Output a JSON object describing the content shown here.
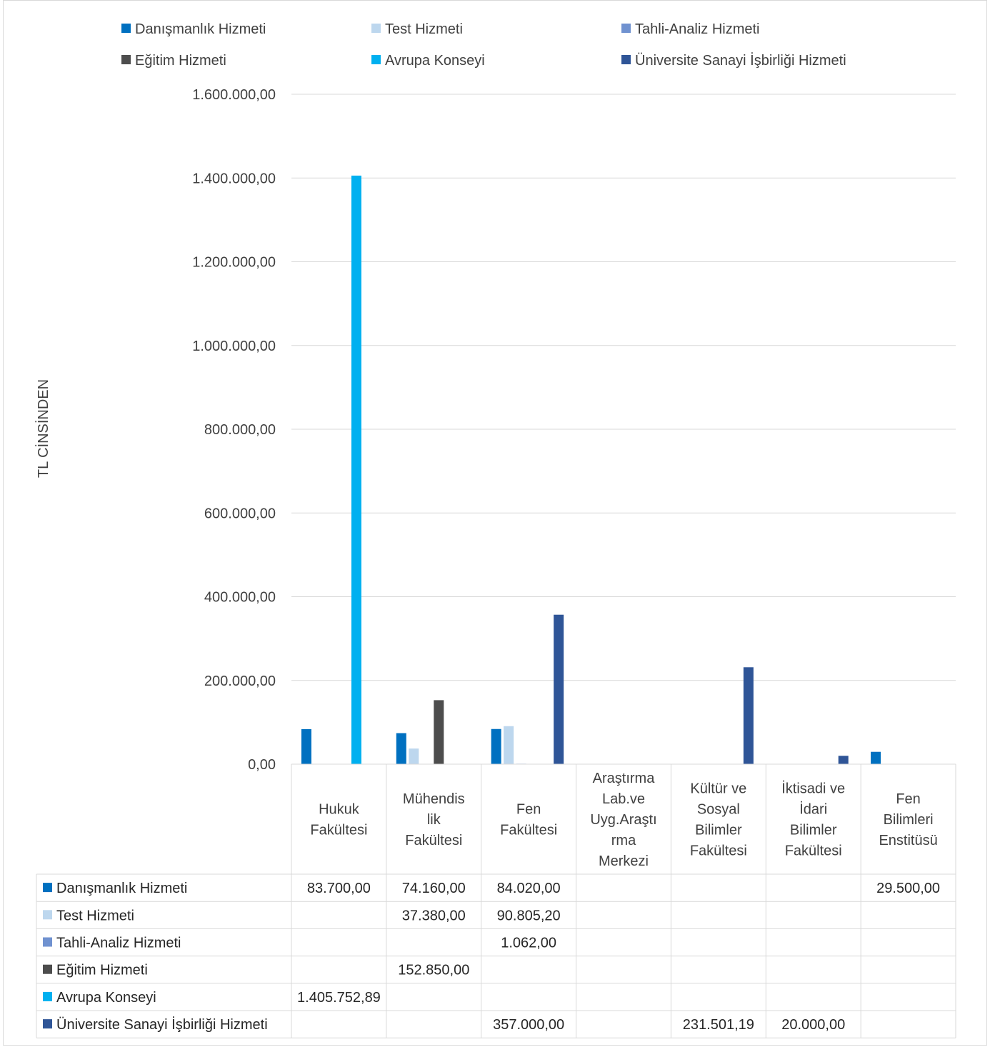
{
  "chart_data": {
    "type": "bar",
    "ylabel": "TL CİNSİNDEN",
    "ylim": [
      0,
      1600000
    ],
    "yticks": [
      {
        "value": 0,
        "label": "0,00"
      },
      {
        "value": 200000,
        "label": "200.000,00"
      },
      {
        "value": 400000,
        "label": "400.000,00"
      },
      {
        "value": 600000,
        "label": "600.000,00"
      },
      {
        "value": 800000,
        "label": "800.000,00"
      },
      {
        "value": 1000000,
        "label": "1.000.000,00"
      },
      {
        "value": 1200000,
        "label": "1.200.000,00"
      },
      {
        "value": 1400000,
        "label": "1.400.000,00"
      },
      {
        "value": 1600000,
        "label": "1.600.000,00"
      }
    ],
    "grid": true,
    "legend": "top",
    "categories": [
      [
        "Hukuk",
        "Fakültesi"
      ],
      [
        "Mühendis",
        "lik",
        "Fakültesi"
      ],
      [
        "Fen",
        "Fakültesi"
      ],
      [
        "Araştırma",
        "Lab.ve",
        "Uyg.Araştı",
        "rma",
        "Merkezi"
      ],
      [
        "Kültür ve",
        "Sosyal",
        "Bilimler",
        "Fakültesi"
      ],
      [
        "İktisadi ve",
        "İdari",
        "Bilimler",
        "Fakültesi"
      ],
      [
        "Fen",
        "Bilimleri",
        "Enstitüsü"
      ]
    ],
    "series": [
      {
        "name": "Danışmanlık Hizmeti",
        "color": "#0070C0",
        "values": [
          83700,
          74160,
          84020,
          null,
          null,
          null,
          29500
        ],
        "labels": [
          "83.700,00",
          "74.160,00",
          "84.020,00",
          "",
          "",
          "",
          "29.500,00"
        ]
      },
      {
        "name": "Test Hizmeti",
        "color": "#BDD7EE",
        "values": [
          null,
          37380,
          90805.2,
          null,
          null,
          null,
          null
        ],
        "labels": [
          "",
          "37.380,00",
          "90.805,20",
          "",
          "",
          "",
          ""
        ]
      },
      {
        "name": "Tahli-Analiz Hizmeti",
        "color": "#7092D0",
        "values": [
          null,
          null,
          1062,
          null,
          null,
          null,
          null
        ],
        "labels": [
          "",
          "",
          "1.062,00",
          "",
          "",
          "",
          ""
        ]
      },
      {
        "name": "Eğitim Hizmeti",
        "color": "#4D4D4D",
        "values": [
          null,
          152850,
          null,
          null,
          null,
          null,
          null
        ],
        "labels": [
          "",
          "152.850,00",
          "",
          "",
          "",
          "",
          ""
        ]
      },
      {
        "name": "Avrupa Konseyi",
        "color": "#00B0F0",
        "values": [
          1405752.89,
          null,
          null,
          null,
          null,
          null,
          null
        ],
        "labels": [
          "1.405.752,89",
          "",
          "",
          "",
          "",
          "",
          ""
        ]
      },
      {
        "name": "Üniversite Sanayi İşbirliği Hizmeti",
        "color": "#2F5597",
        "values": [
          null,
          null,
          357000,
          null,
          231501.19,
          20000,
          null
        ],
        "labels": [
          "",
          "",
          "357.000,00",
          "",
          "231.501,19",
          "20.000,00",
          ""
        ]
      }
    ]
  }
}
